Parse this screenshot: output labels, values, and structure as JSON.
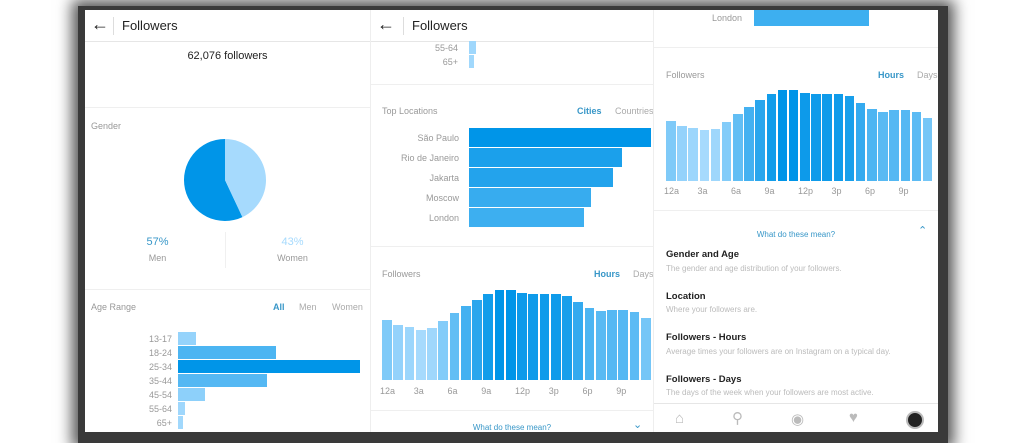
{
  "header": {
    "title": "Followers",
    "back_icon": "arrow-left-icon"
  },
  "summary": {
    "followers": "62,076 followers"
  },
  "gender": {
    "label": "Gender",
    "men_pct": "57%",
    "men_label": "Men",
    "women_pct": "43%",
    "women_label": "Women",
    "men_value": 57,
    "women_value": 43,
    "colors": {
      "men": "#0095e8",
      "women": "#a6dafd"
    }
  },
  "age": {
    "label": "Age Range",
    "tabs": [
      "All",
      "Men",
      "Women"
    ],
    "active_tab": "All",
    "rows": [
      {
        "label": "13-17",
        "value": 10
      },
      {
        "label": "18-24",
        "value": 54
      },
      {
        "label": "25-34",
        "value": 100
      },
      {
        "label": "35-44",
        "value": 49
      },
      {
        "label": "45-54",
        "value": 15
      },
      {
        "label": "55-64",
        "value": 4
      },
      {
        "label": "65+",
        "value": 3
      }
    ]
  },
  "locations": {
    "label": "Top Locations",
    "tabs": [
      "Cities",
      "Countries"
    ],
    "active_tab": "Cities",
    "rows": [
      {
        "label": "São Paulo",
        "value": 100
      },
      {
        "label": "Rio de Janeiro",
        "value": 84
      },
      {
        "label": "Jakarta",
        "value": 79
      },
      {
        "label": "Moscow",
        "value": 67
      },
      {
        "label": "London",
        "value": 63
      }
    ]
  },
  "activity": {
    "label": "Followers",
    "tabs": [
      "Hours",
      "Days"
    ],
    "active_tab": "Hours",
    "ticks": [
      "12a",
      "3a",
      "6a",
      "9a",
      "12p",
      "3p",
      "6p",
      "9p"
    ],
    "values": [
      178,
      163,
      157,
      150,
      155,
      175,
      199,
      220,
      239,
      256,
      269,
      269,
      260,
      258,
      258,
      258,
      252,
      232,
      214,
      205,
      209,
      209,
      203,
      185
    ]
  },
  "help": {
    "link": "What do these mean?",
    "items": [
      {
        "title": "Gender and Age",
        "desc": "The gender and age distribution of your followers."
      },
      {
        "title": "Location",
        "desc": "Where your followers are."
      },
      {
        "title": "Followers - Hours",
        "desc": "Average times your followers are on Instagram on a typical day."
      },
      {
        "title": "Followers - Days",
        "desc": "The days of the week when your followers are most active."
      }
    ]
  },
  "nav": {
    "icons": [
      "home-icon",
      "search-icon",
      "camera-icon",
      "heart-icon",
      "profile-avatar"
    ]
  }
}
